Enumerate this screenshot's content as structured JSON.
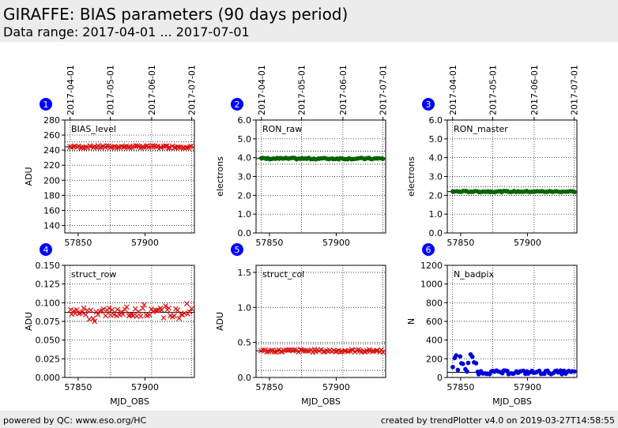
{
  "header": {
    "title": "GIRAFFE: BIAS parameters (90 days period)",
    "subtitle": "Data range: 2017-04-01 ... 2017-07-01"
  },
  "footer": {
    "left": "powered by QC: www.eso.org/HC",
    "right": "created by trendPlotter v4.0 on 2019-03-27T14:58:55"
  },
  "colors": {
    "header_bg": "#ececec",
    "badge": "#0000ff",
    "red": "#dd1111",
    "green": "#006400",
    "blue": "#0000dd"
  },
  "chart_data": [
    {
      "id": "1",
      "type": "scatter",
      "label": "BIAS_level",
      "ylabel": "ADU",
      "xlabel": "",
      "color": "#dd1111",
      "marker": "x",
      "ylim": [
        130,
        280
      ],
      "yticks": [
        140,
        160,
        180,
        200,
        220,
        240,
        260,
        280
      ],
      "ytick_labels": [
        "140",
        "160",
        "180",
        "200",
        "220",
        "240",
        "260",
        "280"
      ],
      "hlines": [
        244.5
      ],
      "hlines_dotted": [
        239,
        251
      ],
      "y_spread": 1.5,
      "y_mean": 244.5
    },
    {
      "id": "2",
      "type": "scatter",
      "label": "RON_raw",
      "ylabel": "electrons",
      "xlabel": "",
      "color": "#006400",
      "marker": "o",
      "ylim": [
        0,
        6
      ],
      "yticks": [
        0,
        1,
        2,
        3,
        4,
        5,
        6
      ],
      "ytick_labels": [
        "0.0",
        "1.0",
        "2.0",
        "3.0",
        "4.0",
        "5.0",
        "6.0"
      ],
      "hlines": [
        3.95
      ],
      "hlines_dotted": [
        3.65,
        4.35
      ],
      "y_spread": 0.04,
      "y_mean": 3.95
    },
    {
      "id": "3",
      "type": "scatter",
      "label": "RON_master",
      "ylabel": "electrons",
      "xlabel": "",
      "color": "#006400",
      "marker": "o",
      "ylim": [
        0,
        6
      ],
      "yticks": [
        0,
        1,
        2,
        3,
        4,
        5,
        6
      ],
      "ytick_labels": [
        "0.0",
        "1.0",
        "2.0",
        "3.0",
        "4.0",
        "5.0",
        "6.0"
      ],
      "hlines": [
        2.2
      ],
      "hlines_dotted": [
        2.0,
        2.45
      ],
      "y_spread": 0.03,
      "y_mean": 2.2
    },
    {
      "id": "4",
      "type": "scatter",
      "label": "struct_row",
      "ylabel": "ADU",
      "xlabel": "MJD_OBS",
      "color": "#dd1111",
      "marker": "x",
      "ylim": [
        0,
        0.15
      ],
      "yticks": [
        0,
        0.025,
        0.05,
        0.075,
        0.1,
        0.125,
        0.15
      ],
      "ytick_labels": [
        "0.000",
        "0.025",
        "0.050",
        "0.075",
        "0.100",
        "0.125",
        "0.150"
      ],
      "hlines": [
        0.087
      ],
      "hlines_dotted": [
        0.075,
        0.1
      ],
      "y_spread": 0.006,
      "y_mean": 0.087
    },
    {
      "id": "5",
      "type": "scatter",
      "label": "struct_col",
      "ylabel": "ADU",
      "xlabel": "MJD_OBS",
      "color": "#dd1111",
      "marker": "x",
      "ylim": [
        0,
        1.6
      ],
      "yticks": [
        0,
        0.5,
        1.0,
        1.5
      ],
      "ytick_labels": [
        "0.0",
        "0.5",
        "1.0",
        "1.5"
      ],
      "hlines": [
        0.38
      ],
      "hlines_dotted": [
        0.1,
        0.48
      ],
      "y_spread": 0.02,
      "y_mean": 0.38
    },
    {
      "id": "6",
      "type": "scatter",
      "label": "N_badpix",
      "ylabel": "N",
      "xlabel": "MJD_OBS",
      "color": "#0000dd",
      "marker": "o",
      "ylim": [
        0,
        1200
      ],
      "yticks": [
        0,
        200,
        400,
        600,
        800,
        1000,
        1200
      ],
      "ytick_labels": [
        "0",
        "200",
        "400",
        "600",
        "800",
        "1000",
        "1200"
      ],
      "hlines": [
        55
      ],
      "hlines_dotted": [],
      "y_spread": 20,
      "y_mean": 55
    }
  ],
  "x_axis": {
    "xlim": [
      57840,
      57937
    ],
    "ticks": [
      57850,
      57900
    ],
    "tick_labels": [
      "57850",
      "57900"
    ],
    "top_dates": [
      "2017-04-01",
      "2017-05-01",
      "2017-06-01",
      "2017-07-01"
    ],
    "top_date_mjd": [
      57844,
      57874,
      57905,
      57935
    ]
  }
}
